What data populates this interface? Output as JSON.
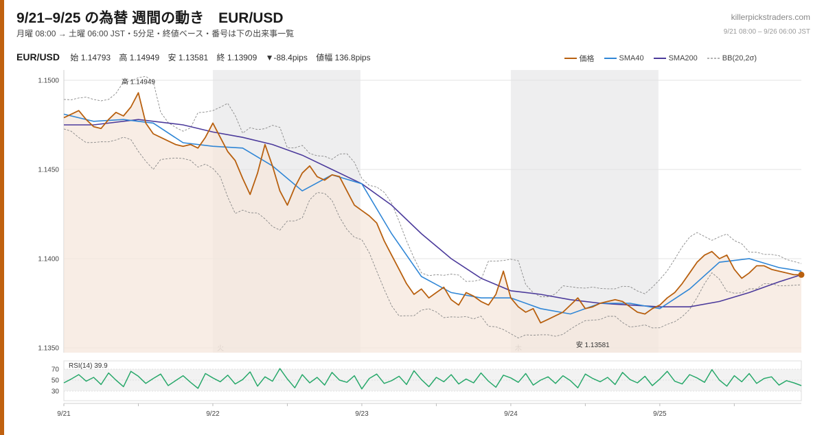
{
  "header": {
    "title": "9/21–9/25 の為替 週間の動き　EUR/USD",
    "subtitle": "月曜 08:00 → 土曜 06:00 JST・5分足・終値ベース・番号は下の出来事一覧",
    "site": "killerpickstraders.com",
    "range": "9/21 08:00 – 9/26 06:00 JST"
  },
  "stats": {
    "pair": "EUR/USD",
    "open": "始 1.14793",
    "high": "高 1.14949",
    "low": "安 1.13581",
    "close": "終 1.13909",
    "change": "▼-88.4pips",
    "range": "値幅 136.8pips"
  },
  "legend": {
    "price": "価格",
    "sma40": "SMA40",
    "sma200": "SMA200",
    "bb": "BB(20,2σ)"
  },
  "colors": {
    "accent": "#c0610f",
    "price": "#b8600f",
    "sma40": "#2f86d6",
    "sma200": "#4b3a9b",
    "bb": "#888888",
    "rsi": "#27a86a",
    "shade": "#eeeeef"
  },
  "chart_data": {
    "type": "line",
    "pair": "EUR/USD",
    "ylim": [
      1.135,
      1.15
    ],
    "y_ticks": [
      "1.1500",
      "1.1450",
      "1.1400",
      "1.1350"
    ],
    "x_ticks": [
      "9/21",
      "9/22",
      "9/23",
      "9/24",
      "9/25"
    ],
    "shaded_days": [
      "火",
      "木"
    ],
    "annotations": {
      "high": "高 1.14949",
      "low": "安 1.13581"
    },
    "series": [
      {
        "name": "価格",
        "key": "price",
        "x": [
          0,
          0.05,
          0.1,
          0.15,
          0.2,
          0.25,
          0.3,
          0.35,
          0.4,
          0.45,
          0.5,
          0.55,
          0.6,
          0.65,
          0.7,
          0.75,
          0.8,
          0.85,
          0.9,
          0.95,
          1.0,
          1.05,
          1.1,
          1.15,
          1.2,
          1.25,
          1.3,
          1.35,
          1.4,
          1.45,
          1.5,
          1.55,
          1.6,
          1.65,
          1.7,
          1.75,
          1.8,
          1.85,
          1.9,
          1.95,
          2.0,
          2.05,
          2.1,
          2.15,
          2.2,
          2.25,
          2.3,
          2.35,
          2.4,
          2.45,
          2.5,
          2.55,
          2.6,
          2.65,
          2.7,
          2.75,
          2.8,
          2.85,
          2.9,
          2.95,
          3.0,
          3.05,
          3.1,
          3.15,
          3.2,
          3.25,
          3.3,
          3.35,
          3.4,
          3.45,
          3.5,
          3.55,
          3.6,
          3.65,
          3.7,
          3.75,
          3.8,
          3.85,
          3.9,
          3.95,
          4.0,
          4.05,
          4.1,
          4.15,
          4.2,
          4.25,
          4.3,
          4.35,
          4.4,
          4.45,
          4.5,
          4.55,
          4.6,
          4.65,
          4.7,
          4.75,
          4.8,
          4.85,
          4.9,
          4.95
        ],
        "y": [
          1.1479,
          1.1481,
          1.1483,
          1.1478,
          1.1474,
          1.1473,
          1.1478,
          1.1482,
          1.148,
          1.1485,
          1.1493,
          1.1476,
          1.147,
          1.1468,
          1.1466,
          1.1464,
          1.1463,
          1.1464,
          1.1462,
          1.1468,
          1.1476,
          1.1468,
          1.146,
          1.1455,
          1.1445,
          1.1436,
          1.1448,
          1.1464,
          1.1452,
          1.1438,
          1.143,
          1.144,
          1.1448,
          1.1452,
          1.1446,
          1.1444,
          1.1447,
          1.1446,
          1.1438,
          1.143,
          1.1427,
          1.1424,
          1.142,
          1.141,
          1.1402,
          1.1394,
          1.1386,
          1.138,
          1.1383,
          1.1378,
          1.1381,
          1.1384,
          1.1377,
          1.1374,
          1.1381,
          1.1379,
          1.1376,
          1.1374,
          1.138,
          1.1393,
          1.1378,
          1.1373,
          1.137,
          1.1372,
          1.1364,
          1.1366,
          1.1368,
          1.137,
          1.1374,
          1.1378,
          1.1372,
          1.1373,
          1.1375,
          1.1376,
          1.1377,
          1.1376,
          1.1373,
          1.137,
          1.1369,
          1.1372,
          1.1374,
          1.1378,
          1.1381,
          1.1386,
          1.1392,
          1.1398,
          1.1402,
          1.1404,
          1.14,
          1.1402,
          1.1394,
          1.1389,
          1.1392,
          1.1396,
          1.1396,
          1.1394,
          1.1393,
          1.1392,
          1.1391,
          1.1391
        ]
      },
      {
        "name": "SMA40",
        "key": "sma40",
        "x": [
          0,
          0.2,
          0.4,
          0.6,
          0.8,
          1.0,
          1.2,
          1.4,
          1.6,
          1.8,
          2.0,
          2.2,
          2.4,
          2.6,
          2.8,
          3.0,
          3.2,
          3.4,
          3.6,
          3.8,
          4.0,
          4.2,
          4.4,
          4.6,
          4.8,
          4.95
        ],
        "y": [
          1.1481,
          1.1477,
          1.1478,
          1.1476,
          1.1465,
          1.1463,
          1.1462,
          1.1452,
          1.1438,
          1.1447,
          1.1442,
          1.1414,
          1.139,
          1.1381,
          1.1378,
          1.1378,
          1.1372,
          1.1369,
          1.1375,
          1.1375,
          1.1372,
          1.1383,
          1.1398,
          1.14,
          1.1395,
          1.1393
        ]
      },
      {
        "name": "SMA200",
        "key": "sma200",
        "x": [
          0,
          0.2,
          0.5,
          0.8,
          1.0,
          1.2,
          1.4,
          1.6,
          1.8,
          2.0,
          2.2,
          2.4,
          2.6,
          2.8,
          3.0,
          3.2,
          3.4,
          3.6,
          3.8,
          4.0,
          4.2,
          4.4,
          4.6,
          4.8,
          4.95
        ],
        "y": [
          1.1475,
          1.1475,
          1.1478,
          1.1475,
          1.1471,
          1.1468,
          1.1464,
          1.1458,
          1.145,
          1.1442,
          1.143,
          1.1414,
          1.14,
          1.1389,
          1.1382,
          1.138,
          1.1377,
          1.1375,
          1.1374,
          1.1373,
          1.1373,
          1.1376,
          1.1381,
          1.1387,
          1.1391
        ]
      }
    ],
    "rsi": {
      "label": "RSI(14) 39.9",
      "levels": [
        "70",
        "50",
        "30"
      ],
      "ylim": [
        20,
        80
      ],
      "values": [
        45,
        52,
        60,
        48,
        55,
        42,
        63,
        50,
        38,
        66,
        57,
        44,
        53,
        61,
        40,
        49,
        58,
        46,
        35,
        62,
        54,
        47,
        59,
        43,
        51,
        65,
        39,
        56,
        48,
        71,
        52,
        36,
        60,
        45,
        55,
        41,
        64,
        50,
        46,
        58,
        34,
        53,
        61,
        44,
        49,
        57,
        42,
        67,
        51,
        38,
        55,
        47,
        60,
        43,
        52,
        45,
        63,
        48,
        37,
        59,
        54,
        46,
        62,
        41,
        50,
        56,
        44,
        58,
        49,
        36,
        61,
        53,
        47,
        55,
        42,
        64,
        51,
        45,
        57,
        40,
        52,
        66,
        48,
        43,
        60,
        54,
        46,
        69,
        50,
        39,
        58,
        47,
        62,
        44,
        53,
        56,
        41,
        49,
        45,
        40
      ]
    }
  }
}
